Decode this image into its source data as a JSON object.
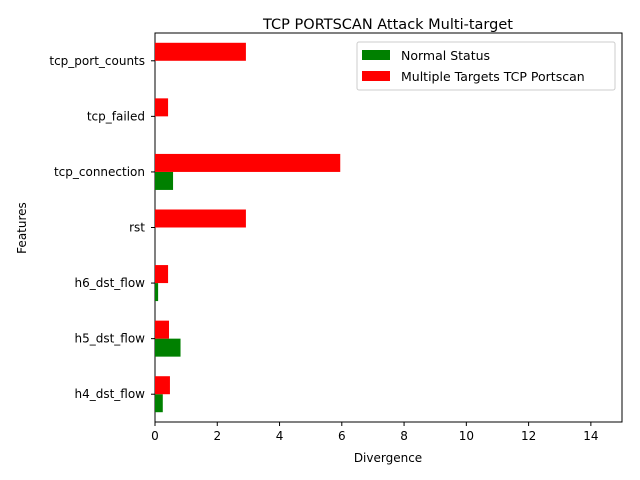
{
  "chart_data": {
    "type": "bar",
    "orientation": "horizontal",
    "title": "TCP PORTSCAN Attack Multi-target",
    "xlabel": "Divergence",
    "ylabel": "Features",
    "categories": [
      "h4_dst_flow",
      "h5_dst_flow",
      "h6_dst_flow",
      "rst",
      "tcp_connection",
      "tcp_failed",
      "tcp_port_counts"
    ],
    "series": [
      {
        "name": "Normal Status",
        "color": "#008000",
        "values": [
          0.25,
          0.82,
          0.1,
          0.0,
          0.58,
          0.0,
          0.0
        ]
      },
      {
        "name": "Multiple Targets TCP Portscan",
        "color": "#ff0000",
        "values": [
          0.48,
          0.45,
          0.42,
          2.92,
          5.95,
          0.42,
          2.92
        ]
      }
    ],
    "xlim": [
      0,
      15
    ],
    "xticks": [
      0,
      2,
      4,
      6,
      8,
      10,
      12,
      14
    ],
    "grid": false,
    "legend_position": "top-right"
  }
}
